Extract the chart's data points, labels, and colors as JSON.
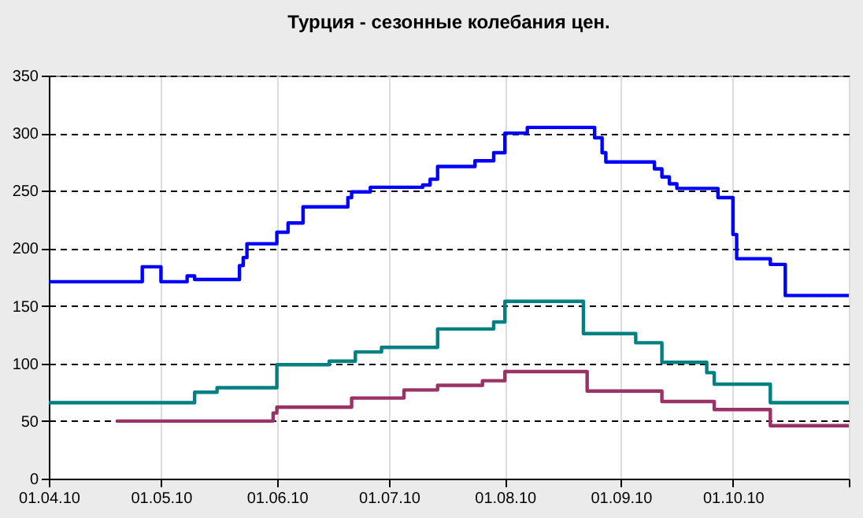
{
  "chart_data": {
    "type": "step",
    "title": "Турция - сезонные колебания цен.",
    "xlim": [
      "2010-04-01",
      "2010-11-01"
    ],
    "xticks": [
      {
        "value": "2010-04-01",
        "label": "01.04.10"
      },
      {
        "value": "2010-05-01",
        "label": "01.05.10"
      },
      {
        "value": "2010-06-01",
        "label": "01.06.10"
      },
      {
        "value": "2010-07-01",
        "label": "01.07.10"
      },
      {
        "value": "2010-08-01",
        "label": "01.08.10"
      },
      {
        "value": "2010-09-01",
        "label": "01.09.10"
      },
      {
        "value": "2010-10-01",
        "label": "01.10.10"
      },
      {
        "value": "2010-11-01",
        "label": null
      }
    ],
    "ylim": [
      0,
      350
    ],
    "yticks": [
      0,
      50,
      100,
      150,
      200,
      250,
      300,
      350
    ],
    "grid": true,
    "line_style": "solid",
    "series": [
      {
        "color": "#0000ff",
        "x": [
          "2010-04-01",
          "2010-04-26",
          "2010-05-01",
          "2010-05-08",
          "2010-05-10",
          "2010-05-22",
          "2010-05-23",
          "2010-05-24",
          "2010-06-01",
          "2010-06-04",
          "2010-06-08",
          "2010-06-20",
          "2010-06-21",
          "2010-06-26",
          "2010-07-01",
          "2010-07-10",
          "2010-07-12",
          "2010-07-14",
          "2010-07-24",
          "2010-07-29",
          "2010-08-01",
          "2010-08-07",
          "2010-08-25",
          "2010-08-27",
          "2010-08-28",
          "2010-09-10",
          "2010-09-12",
          "2010-09-14",
          "2010-09-16",
          "2010-09-27",
          "2010-10-01",
          "2010-10-02",
          "2010-10-11",
          "2010-10-15",
          "2010-11-01"
        ],
        "values": [
          171,
          184,
          171,
          176,
          173,
          185,
          192,
          204,
          214,
          222,
          236,
          244,
          249,
          253,
          253,
          255,
          260,
          271,
          276,
          283,
          300,
          305,
          296,
          283,
          275,
          269,
          262,
          256,
          252,
          244,
          212,
          191,
          186,
          159,
          159
        ]
      },
      {
        "color": "#008080",
        "x": [
          "2010-04-01",
          "2010-05-10",
          "2010-05-16",
          "2010-06-01",
          "2010-06-15",
          "2010-06-22",
          "2010-06-29",
          "2010-07-14",
          "2010-07-29",
          "2010-08-01",
          "2010-08-22",
          "2010-09-05",
          "2010-09-12",
          "2010-09-24",
          "2010-09-26",
          "2010-10-11",
          "2010-11-01"
        ],
        "values": [
          66,
          75,
          79,
          99,
          102,
          110,
          114,
          130,
          136,
          154,
          126,
          118,
          101,
          92,
          82,
          66,
          66
        ]
      },
      {
        "color": "#993366",
        "x": [
          "2010-04-19",
          "2010-05-31",
          "2010-06-01",
          "2010-06-21",
          "2010-07-05",
          "2010-07-14",
          "2010-07-26",
          "2010-08-01",
          "2010-08-23",
          "2010-09-12",
          "2010-09-26",
          "2010-10-11",
          "2010-11-01"
        ],
        "values": [
          50,
          57,
          62,
          70,
          77,
          81,
          85,
          93,
          76,
          67,
          60,
          46,
          46
        ]
      }
    ]
  }
}
